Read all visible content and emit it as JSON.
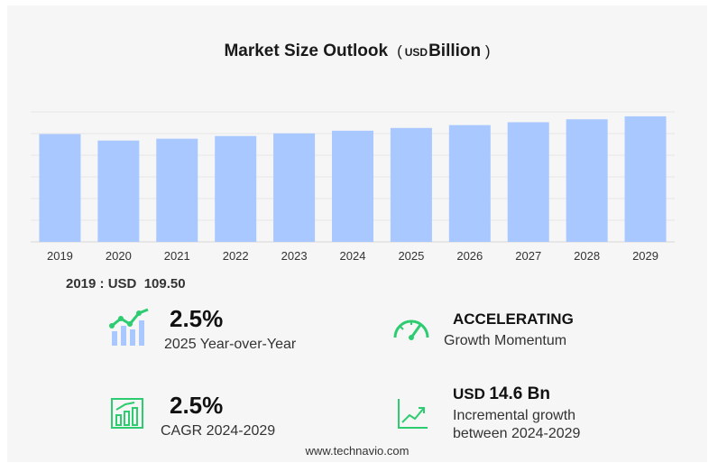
{
  "header": {
    "title_main": "Market Size Outlook",
    "title_unit_prefix": "USD",
    "title_unit": "Billion"
  },
  "chart_data": {
    "type": "bar",
    "title": "Market Size Outlook ( USD Billion )",
    "categories": [
      "2019",
      "2020",
      "2021",
      "2022",
      "2023",
      "2024",
      "2025",
      "2026",
      "2027",
      "2028",
      "2029"
    ],
    "values": [
      109.5,
      102.9,
      104.8,
      107.5,
      110.2,
      112.9,
      115.7,
      118.6,
      121.5,
      124.5,
      127.5
    ],
    "xlabel": "",
    "ylabel": "",
    "grid": true,
    "bar_color": "#a9c8ff"
  },
  "first_year": {
    "label": "2019 : USD",
    "value": "109.50"
  },
  "stats": {
    "yoy": {
      "value": "2.5%",
      "label": "2025 Year-over-Year",
      "icon": "bar-trend-icon"
    },
    "momentum": {
      "value": "ACCELERATING",
      "label": "Growth Momentum",
      "icon": "gauge-icon"
    },
    "cagr": {
      "value": "2.5%",
      "label": "CAGR 2024-2029",
      "icon": "bar-chart-up-icon"
    },
    "incremental": {
      "prefix": "USD",
      "value": "14.6 Bn",
      "label_line1": "Incremental growth",
      "label_line2": "between 2024-2029",
      "icon": "line-chart-up-icon"
    }
  },
  "colors": {
    "accent_green": "#2ecc71",
    "bar": "#a9c8ff"
  },
  "footer": {
    "site": "www.technavio.com"
  }
}
